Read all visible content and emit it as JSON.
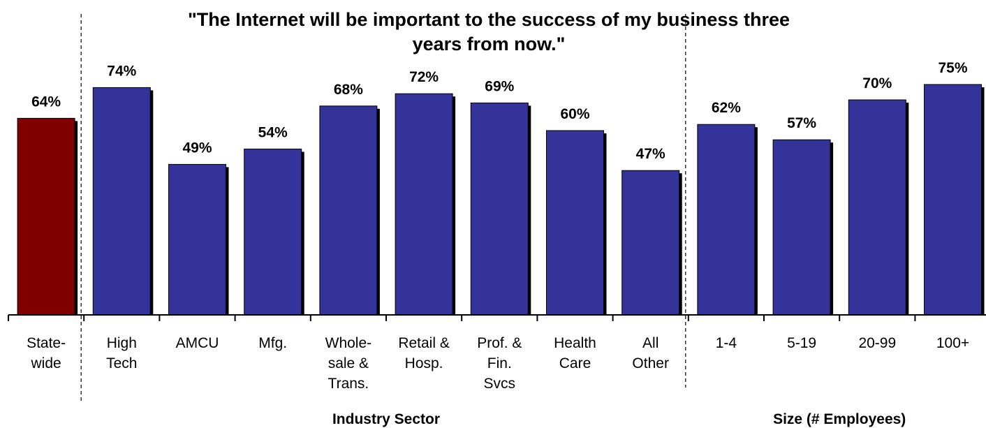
{
  "chart_data": {
    "type": "bar",
    "title": "\"The Internet will be important to the success of my business three years from now.\"",
    "title_lines": [
      "\"The Internet will be important to the success of my business three",
      "years from now.\""
    ],
    "categories": [
      [
        "State-",
        "wide"
      ],
      [
        "High",
        "Tech"
      ],
      [
        "AMCU"
      ],
      [
        "Mfg."
      ],
      [
        "Whole-",
        "sale &",
        "Trans."
      ],
      [
        "Retail &",
        "Hosp."
      ],
      [
        "Prof. &",
        "Fin.",
        "Svcs"
      ],
      [
        "Health",
        "Care"
      ],
      [
        "All",
        "Other"
      ],
      [
        "1-4"
      ],
      [
        "5-19"
      ],
      [
        "20-99"
      ],
      [
        "100+"
      ]
    ],
    "values": [
      64,
      74,
      49,
      54,
      68,
      72,
      69,
      60,
      47,
      62,
      57,
      70,
      75
    ],
    "value_labels": [
      "64%",
      "74%",
      "49%",
      "54%",
      "68%",
      "72%",
      "69%",
      "60%",
      "47%",
      "62%",
      "57%",
      "70%",
      "75%"
    ],
    "groups": [
      {
        "label": "",
        "from": 0,
        "to": 0
      },
      {
        "label": "Industry Sector",
        "from": 1,
        "to": 8
      },
      {
        "label": "Size (# Employees)",
        "from": 9,
        "to": 12
      }
    ],
    "ylim": [
      0,
      100
    ],
    "unit": "%",
    "grid": false,
    "legend": "none",
    "colors": {
      "highlight": "#800000",
      "bar": "#333399",
      "shadow": "#000000",
      "axis": "#000000"
    }
  }
}
